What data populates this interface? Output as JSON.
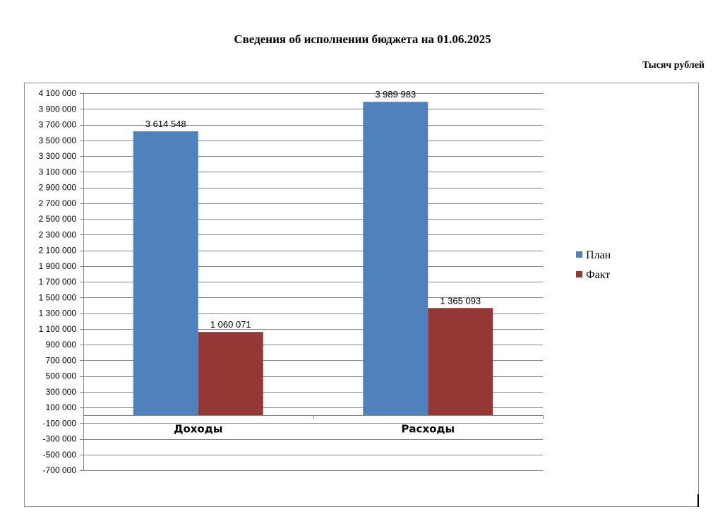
{
  "page": {
    "title": "Сведения об исполнении бюджета на 01.06.2025",
    "units": "Тысяч рублей"
  },
  "chart_data": {
    "type": "bar",
    "categories": [
      "Доходы",
      "Расходы"
    ],
    "series": [
      {
        "name": "План",
        "color": "#4f81bd",
        "values": [
          3614548,
          3989983
        ],
        "labels": [
          "3 614 548",
          "3 989 983"
        ]
      },
      {
        "name": "Факт",
        "color": "#953735",
        "values": [
          1060071,
          1365093
        ],
        "labels": [
          "1 060 071",
          "1 365 093"
        ]
      }
    ],
    "ylim": [
      -700000,
      4100000
    ],
    "yticks": [
      4100000,
      3900000,
      3700000,
      3500000,
      3300000,
      3100000,
      2900000,
      2700000,
      2500000,
      2300000,
      2100000,
      1900000,
      1700000,
      1500000,
      1300000,
      1100000,
      900000,
      700000,
      500000,
      300000,
      100000,
      -100000,
      -300000,
      -500000,
      -700000
    ],
    "ytick_labels": [
      "4 100 000",
      "3 900 000",
      "3 700 000",
      "3 500 000",
      "3 300 000",
      "3 100 000",
      "2 900 000",
      "2 700 000",
      "2 500 000",
      "2 300 000",
      "2 100 000",
      "1 900 000",
      "1 700 000",
      "1 500 000",
      "1 300 000",
      "1 100 000",
      "900 000",
      "700 000",
      "500 000",
      "300 000",
      "100 000",
      "-100 000",
      "-300 000",
      "-500 000",
      "-700 000"
    ],
    "grid": true,
    "legend_position": "right"
  }
}
